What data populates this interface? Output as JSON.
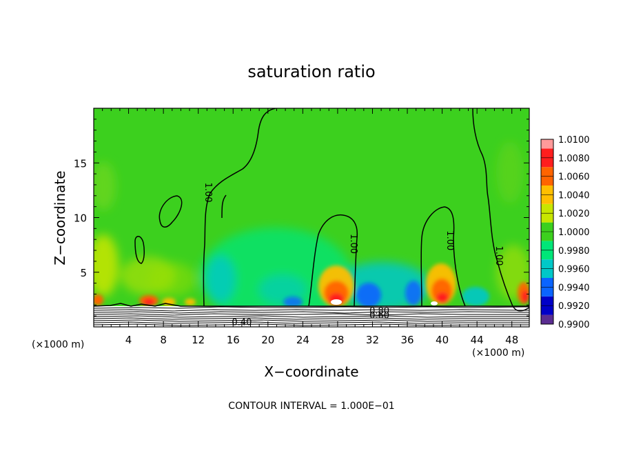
{
  "chart_data": {
    "type": "heatmap",
    "title": "saturation ratio",
    "xlabel": "X−coordinate",
    "ylabel": "Z−coordinate",
    "x_unit_left": "(×1000 m)",
    "x_unit_right": "(×1000 m)",
    "xlim": [
      0,
      50
    ],
    "ylim": [
      0,
      20
    ],
    "x_ticks": [
      4,
      8,
      12,
      16,
      20,
      24,
      28,
      32,
      36,
      40,
      44,
      48
    ],
    "x_tick_labels": [
      "4",
      "8",
      "12",
      "16",
      "20",
      "24",
      "28",
      "32",
      "36",
      "40",
      "44",
      "48"
    ],
    "y_ticks": [
      5,
      10,
      15
    ],
    "y_tick_labels": [
      "5",
      "10",
      "15"
    ],
    "colorbar": {
      "levels": [
        0.99,
        0.992,
        0.994,
        0.996,
        0.998,
        1.0,
        1.002,
        1.004,
        1.006,
        1.008,
        1.01
      ],
      "labels": [
        "0.9900",
        "0.9920",
        "0.9940",
        "0.9960",
        "0.9980",
        "1.0000",
        "1.0020",
        "1.0040",
        "1.0060",
        "1.0080",
        "1.0100"
      ],
      "colors": [
        "#5a2d91",
        "#0000c8",
        "#0a64ff",
        "#00c8c8",
        "#00e678",
        "#3cd01e",
        "#c8e600",
        "#ffbe00",
        "#ff6400",
        "#ff1e1e",
        "#ff9a9a"
      ]
    },
    "contour_labels": [
      {
        "text": "1.00",
        "x": 12.8,
        "z": 12.3
      },
      {
        "text": "1.00",
        "x": 29.5,
        "z": 7.6
      },
      {
        "text": "1.00",
        "x": 40.6,
        "z": 7.9
      },
      {
        "text": "1.00",
        "x": 46.2,
        "z": 6.5
      },
      {
        "text": "0.80",
        "x": 32.8,
        "z": 1.2
      },
      {
        "text": "0.60",
        "x": 32.8,
        "z": 0.8
      },
      {
        "text": "0.40",
        "x": 17.0,
        "z": 0.15
      }
    ],
    "grid": false,
    "legend": "colorbar-right"
  },
  "footer": {
    "contour_interval": "CONTOUR INTERVAL = 1.000E−01"
  }
}
